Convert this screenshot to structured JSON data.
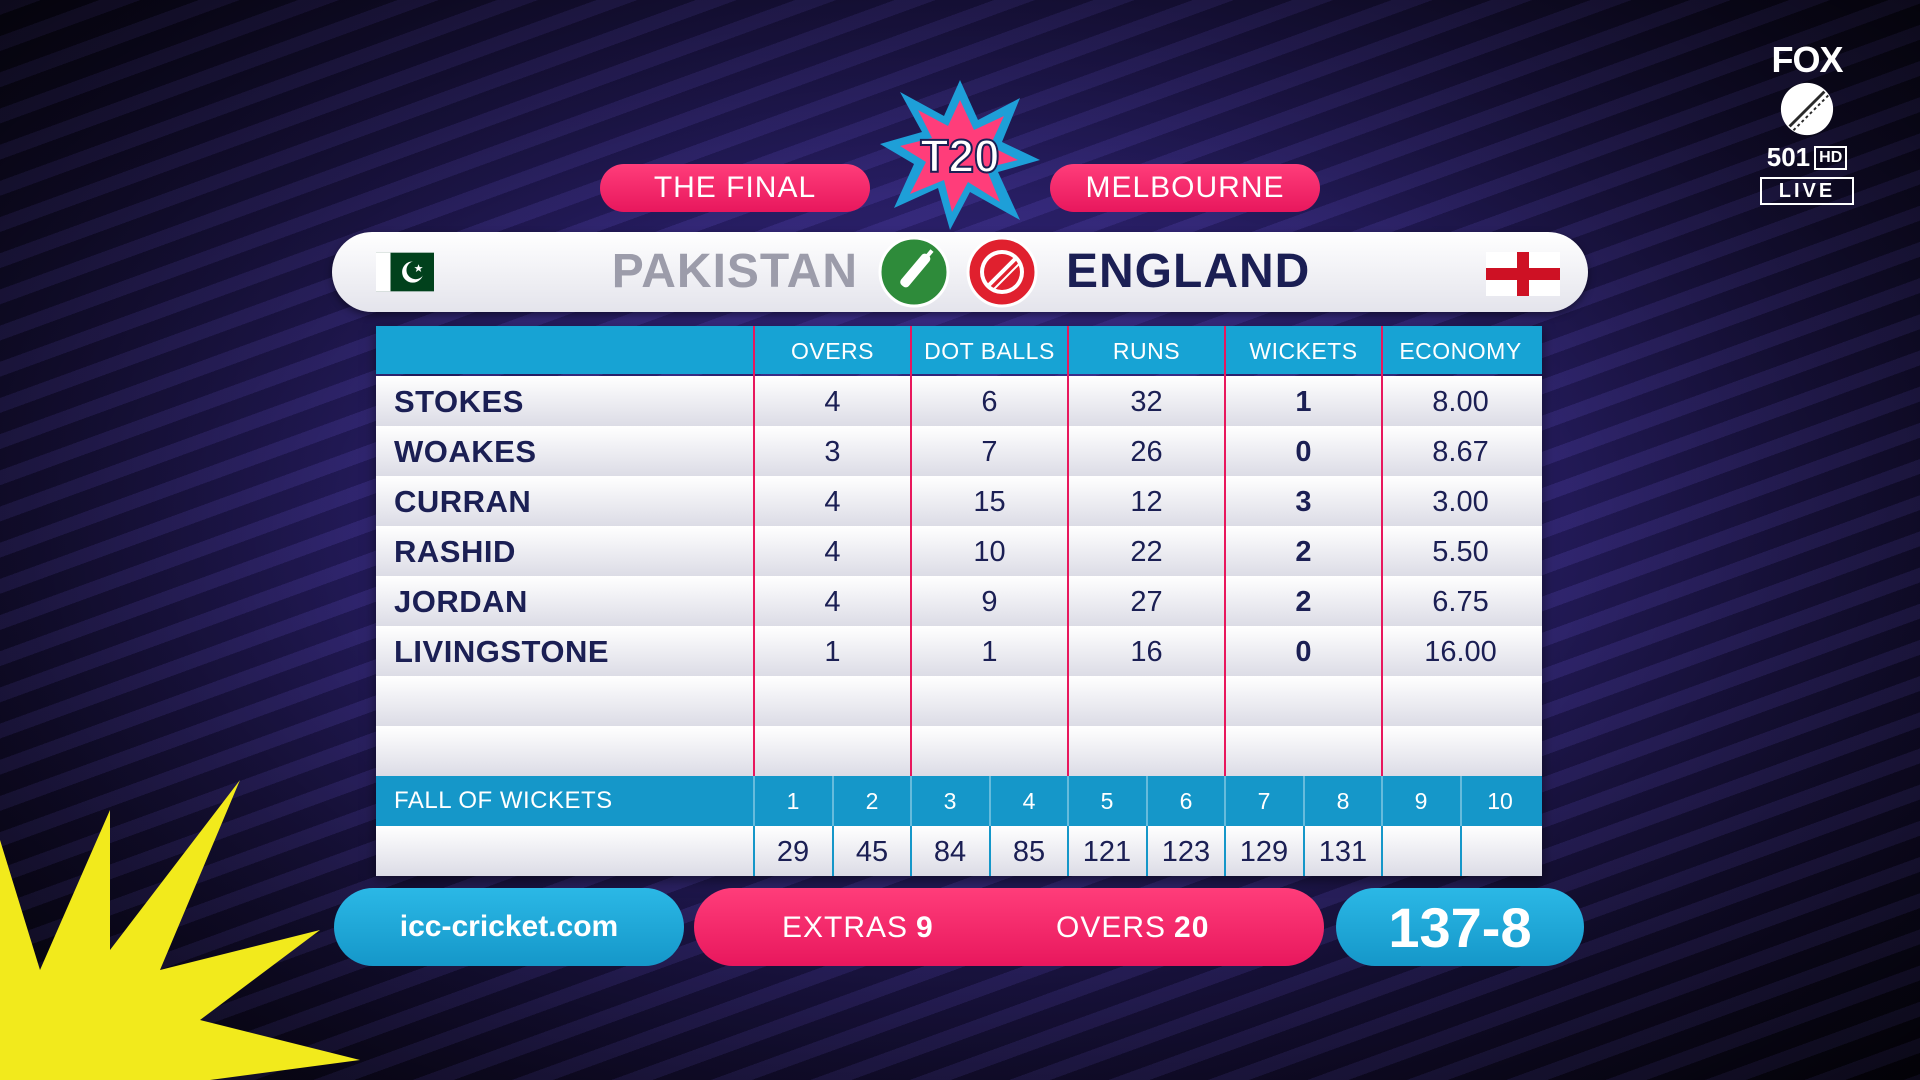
{
  "broadcaster": {
    "name": "FOX",
    "channel": "501",
    "quality": "HD",
    "status": "LIVE",
    "logo_icon": "cricket-ball-icon"
  },
  "event": {
    "stage": "THE FINAL",
    "venue": "MELBOURNE",
    "logo": "T20"
  },
  "teams": {
    "batting": {
      "name": "PAKISTAN",
      "flag_icon": "pakistan-flag-icon",
      "role_icon": "bat-icon"
    },
    "bowling": {
      "name": "ENGLAND",
      "flag_icon": "england-flag-icon",
      "role_icon": "ball-icon"
    }
  },
  "bowling_table": {
    "columns": [
      "OVERS",
      "DOT BALLS",
      "RUNS",
      "WICKETS",
      "ECONOMY"
    ],
    "rows": [
      {
        "player": "STOKES",
        "overs": "4",
        "dot_balls": "6",
        "runs": "32",
        "wickets": "1",
        "economy": "8.00"
      },
      {
        "player": "WOAKES",
        "overs": "3",
        "dot_balls": "7",
        "runs": "26",
        "wickets": "0",
        "economy": "8.67"
      },
      {
        "player": "CURRAN",
        "overs": "4",
        "dot_balls": "15",
        "runs": "12",
        "wickets": "3",
        "economy": "3.00"
      },
      {
        "player": "RASHID",
        "overs": "4",
        "dot_balls": "10",
        "runs": "22",
        "wickets": "2",
        "economy": "5.50"
      },
      {
        "player": "JORDAN",
        "overs": "4",
        "dot_balls": "9",
        "runs": "27",
        "wickets": "2",
        "economy": "6.75"
      },
      {
        "player": "LIVINGSTONE",
        "overs": "1",
        "dot_balls": "1",
        "runs": "16",
        "wickets": "0",
        "economy": "16.00"
      }
    ]
  },
  "fall_of_wickets": {
    "label": "FALL OF WICKETS",
    "numbers": [
      "1",
      "2",
      "3",
      "4",
      "5",
      "6",
      "7",
      "8",
      "9",
      "10"
    ],
    "scores": [
      "29",
      "45",
      "84",
      "85",
      "121",
      "123",
      "129",
      "131",
      "",
      ""
    ]
  },
  "footer": {
    "website": "icc-cricket.com",
    "extras_label": "EXTRAS",
    "extras_value": "9",
    "overs_label": "OVERS",
    "overs_value": "20",
    "total": "137-8"
  },
  "colors": {
    "accent_pink": "#e8175d",
    "accent_blue": "#17a3d4",
    "navy_text": "#1b1f54",
    "pakistan_green": "#01411c",
    "burst_yellow": "#f2ea1c"
  }
}
